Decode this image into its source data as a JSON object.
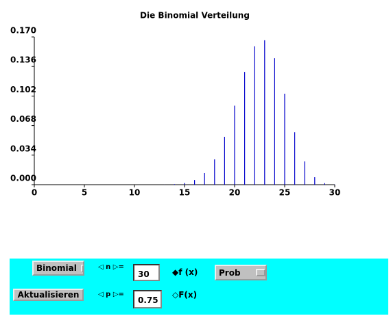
{
  "chart_data": {
    "type": "bar",
    "title": "Die Binomial Verteilung",
    "x": [
      0,
      1,
      2,
      3,
      4,
      5,
      6,
      7,
      8,
      9,
      10,
      11,
      12,
      13,
      14,
      15,
      16,
      17,
      18,
      19,
      20,
      21,
      22,
      23,
      24,
      25,
      26,
      27,
      28,
      29,
      30
    ],
    "values": [
      0,
      0,
      0,
      0,
      0,
      0,
      0,
      0,
      0,
      0,
      0,
      0,
      0,
      0.0001,
      0.0006,
      0.0019,
      0.0054,
      0.0134,
      0.0291,
      0.0551,
      0.0909,
      0.1298,
      0.1593,
      0.1662,
      0.1455,
      0.1047,
      0.0604,
      0.0268,
      0.0086,
      0.0018,
      0.0002
    ],
    "color": "#0000cc",
    "xlim": [
      0,
      30
    ],
    "xticks": [
      0,
      5,
      10,
      15,
      20,
      25,
      30
    ],
    "ylim": [
      0,
      0.17
    ],
    "yticks": [
      {
        "value": 0,
        "label": "0.000"
      },
      0.034,
      0.068,
      0.102,
      0.136,
      {
        "value": 0.17,
        "label": "0.170"
      }
    ],
    "grid": false
  },
  "controls": {
    "distribution": "Binomial",
    "update_button": "Aktualisieren",
    "n_label": "n",
    "p_label": "p",
    "equals": "=",
    "n_value": "30",
    "p_value": "0.75",
    "radio_f": "f (x)",
    "radio_F": "F(x)",
    "mode": "Prob"
  }
}
